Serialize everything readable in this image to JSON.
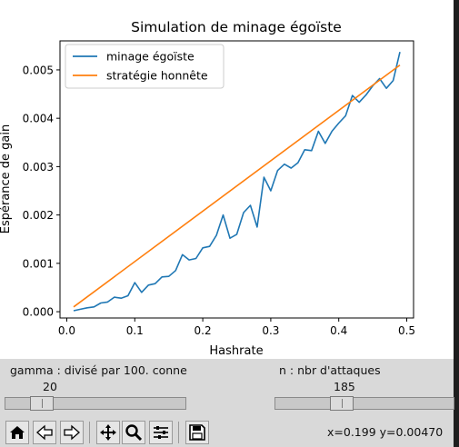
{
  "chart_data": {
    "type": "line",
    "title": "Simulation de minage égoïste",
    "xlabel": "Hashrate",
    "ylabel": "Espérance de gain",
    "xlim": [
      -0.01,
      0.51
    ],
    "ylim": [
      -0.00013,
      0.0056
    ],
    "xticks": [
      "0.0",
      "0.1",
      "0.2",
      "0.3",
      "0.4",
      "0.5"
    ],
    "yticks": [
      "0.000",
      "0.001",
      "0.002",
      "0.003",
      "0.004",
      "0.005"
    ],
    "legend_position": "top-left",
    "series": [
      {
        "name": "minage égoïste",
        "color": "#1f77b4",
        "x": [
          0.01,
          0.02,
          0.03,
          0.04,
          0.05,
          0.06,
          0.07,
          0.08,
          0.09,
          0.1,
          0.11,
          0.12,
          0.13,
          0.14,
          0.15,
          0.16,
          0.17,
          0.18,
          0.19,
          0.2,
          0.21,
          0.22,
          0.23,
          0.24,
          0.25,
          0.26,
          0.27,
          0.28,
          0.29,
          0.3,
          0.31,
          0.32,
          0.33,
          0.34,
          0.35,
          0.36,
          0.37,
          0.38,
          0.39,
          0.4,
          0.41,
          0.42,
          0.43,
          0.44,
          0.45,
          0.46,
          0.47,
          0.48,
          0.49
        ],
        "y": [
          2e-05,
          5e-05,
          8e-05,
          0.0001,
          0.00018,
          0.0002,
          0.0003,
          0.00028,
          0.00033,
          0.0006,
          0.0004,
          0.00055,
          0.00058,
          0.00072,
          0.00073,
          0.00085,
          0.00118,
          0.00107,
          0.0011,
          0.00132,
          0.00135,
          0.00158,
          0.002,
          0.00152,
          0.0016,
          0.00205,
          0.0022,
          0.00175,
          0.00278,
          0.0025,
          0.00292,
          0.00305,
          0.00297,
          0.00308,
          0.00335,
          0.00333,
          0.00373,
          0.00348,
          0.00373,
          0.0039,
          0.00405,
          0.00447,
          0.00433,
          0.00448,
          0.00467,
          0.00482,
          0.00462,
          0.00478,
          0.00537
        ]
      },
      {
        "name": "stratégie honnête",
        "color": "#ff7f0e",
        "x": [
          0.01,
          0.49
        ],
        "y": [
          0.0001,
          0.0051
        ]
      }
    ]
  },
  "sliders": {
    "gamma": {
      "label": "gamma : divisé par 100. conne",
      "value": "20",
      "fraction": 0.2
    },
    "n": {
      "label": "n : nbr d'attaques",
      "value": "185",
      "fraction": 0.37
    }
  },
  "toolbar": {
    "buttons": [
      "home-icon",
      "back-arrow-icon",
      "forward-arrow-icon",
      "pan-icon",
      "zoom-icon",
      "configure-subplots-icon",
      "save-icon"
    ]
  },
  "status": {
    "coords": "x=0.199 y=0.00470"
  }
}
